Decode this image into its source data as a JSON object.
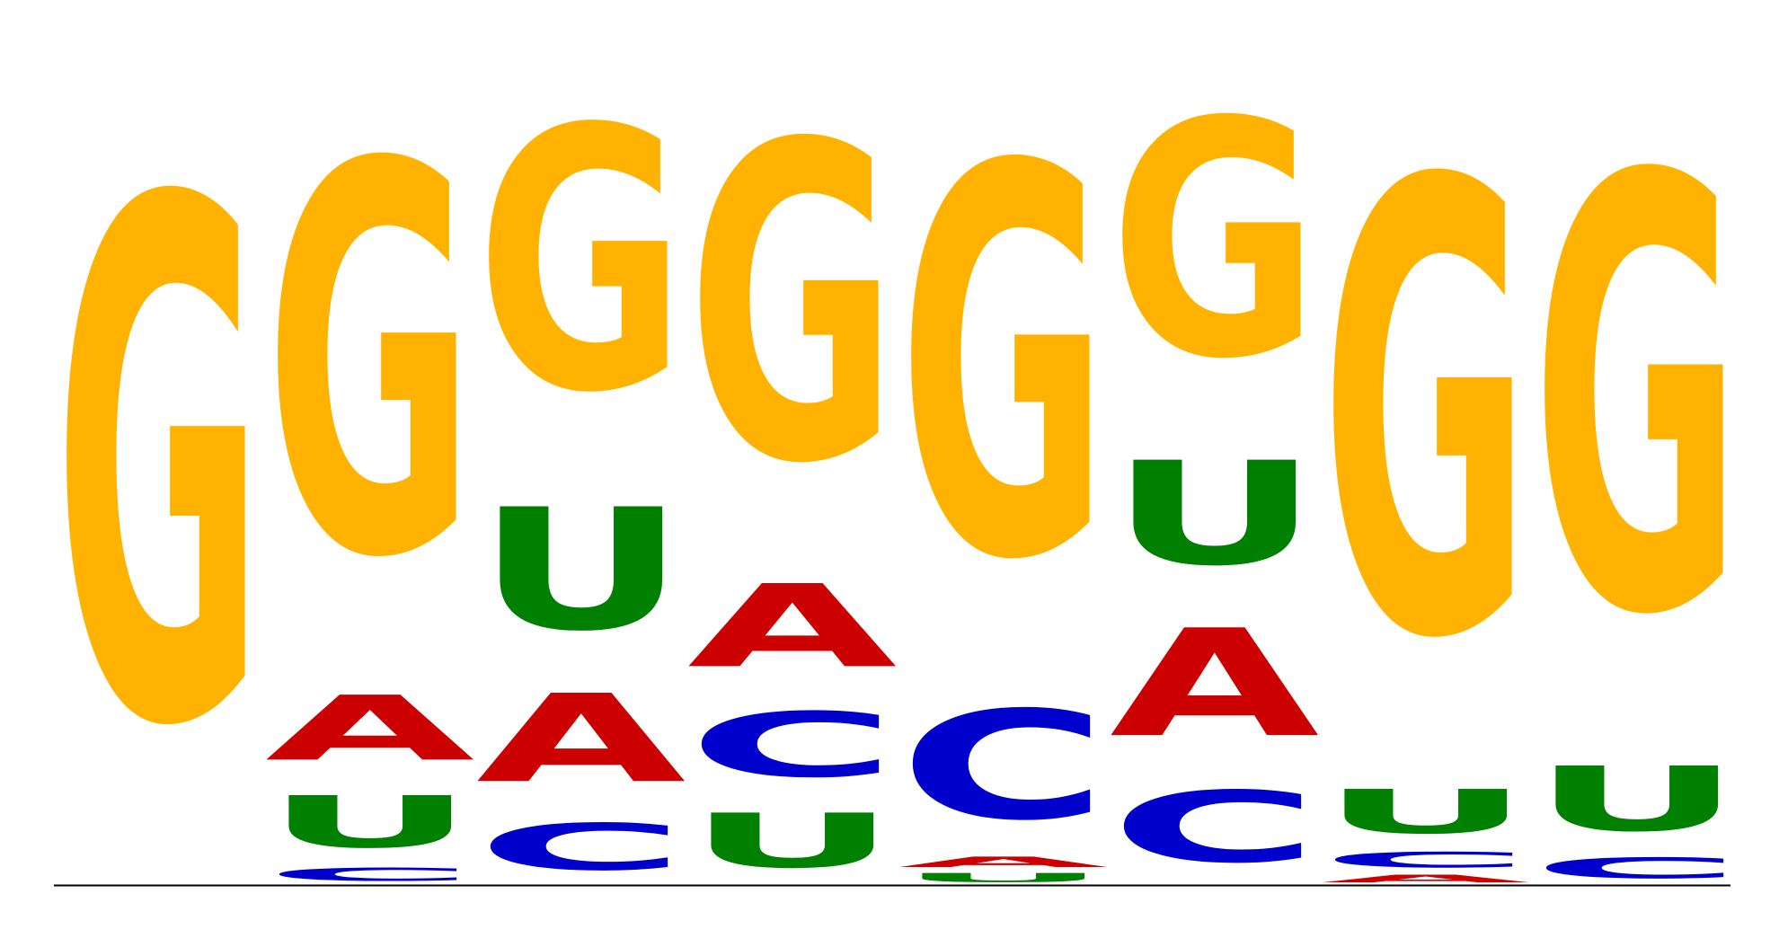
{
  "colors": {
    "A": "#CC0000",
    "C": "#0000CC",
    "G": "#FFB300",
    "U": "#008000",
    "baseline": "#000000"
  },
  "chart_data": {
    "type": "sequence-logo",
    "alphabet": [
      "A",
      "C",
      "G",
      "U"
    ],
    "ylim": [
      0,
      2
    ],
    "positions": [
      {
        "index": 1,
        "letters": [
          {
            "base": "G",
            "bits": 2.0
          }
        ]
      },
      {
        "index": 2,
        "letters": [
          {
            "base": "C",
            "bits": 0.05
          },
          {
            "base": "U",
            "bits": 0.2
          },
          {
            "base": "A",
            "bits": 0.25
          },
          {
            "base": "G",
            "bits": 1.5
          }
        ]
      },
      {
        "index": 3,
        "letters": [
          {
            "base": "C",
            "bits": 0.18
          },
          {
            "base": "A",
            "bits": 0.34
          },
          {
            "base": "U",
            "bits": 0.47
          },
          {
            "base": "G",
            "bits": 1.01
          }
        ]
      },
      {
        "index": 4,
        "letters": [
          {
            "base": "U",
            "bits": 0.21
          },
          {
            "base": "C",
            "bits": 0.25
          },
          {
            "base": "A",
            "bits": 0.32
          },
          {
            "base": "G",
            "bits": 1.22
          }
        ]
      },
      {
        "index": 5,
        "letters": [
          {
            "base": "U",
            "bits": 0.035
          },
          {
            "base": "A",
            "bits": 0.04
          },
          {
            "base": "C",
            "bits": 0.42
          },
          {
            "base": "G",
            "bits": 1.5
          }
        ]
      },
      {
        "index": 6,
        "letters": [
          {
            "base": "C",
            "bits": 0.275
          },
          {
            "base": "A",
            "bits": 0.415
          },
          {
            "base": "U",
            "bits": 0.4
          },
          {
            "base": "G",
            "bits": 0.91
          }
        ]
      },
      {
        "index": 7,
        "letters": [
          {
            "base": "A",
            "bits": 0.03
          },
          {
            "base": "C",
            "bits": 0.06
          },
          {
            "base": "U",
            "bits": 0.17
          },
          {
            "base": "G",
            "bits": 1.74
          }
        ]
      },
      {
        "index": 8,
        "letters": [
          {
            "base": "C",
            "bits": 0.08
          },
          {
            "base": "U",
            "bits": 0.25
          },
          {
            "base": "G",
            "bits": 1.67
          }
        ]
      }
    ]
  }
}
